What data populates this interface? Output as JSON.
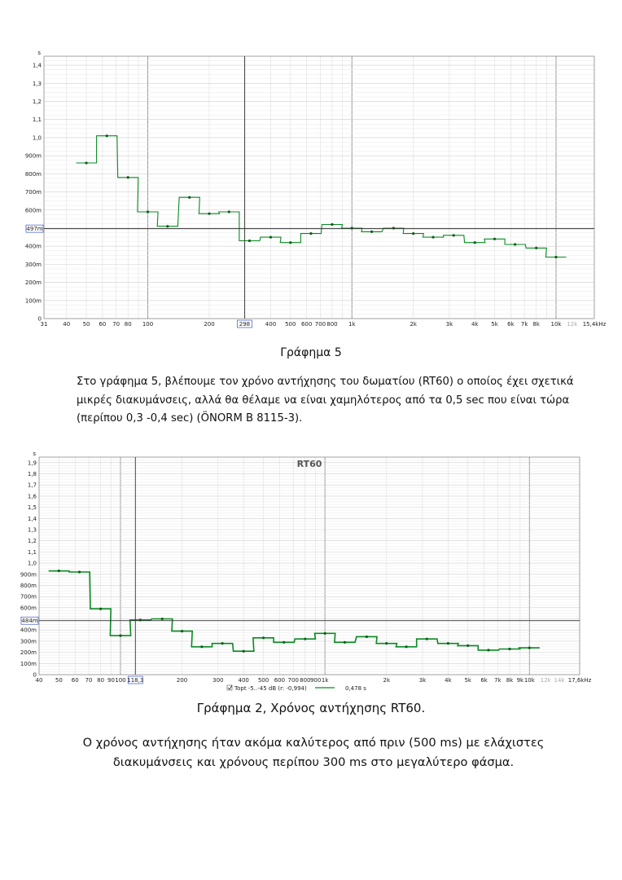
{
  "chart_data": [
    {
      "type": "line",
      "step": true,
      "title": "",
      "y_unit_label": "s",
      "ylim": [
        0,
        1.45
      ],
      "xlim": [
        31,
        15400
      ],
      "x_scale": "log",
      "grid": true,
      "y_ticks": [
        {
          "v": 0,
          "label": "0"
        },
        {
          "v": 0.1,
          "label": "100m"
        },
        {
          "v": 0.2,
          "label": "200m"
        },
        {
          "v": 0.3,
          "label": "300m"
        },
        {
          "v": 0.4,
          "label": "400m"
        },
        {
          "v": 0.5,
          "label": "500m"
        },
        {
          "v": 0.6,
          "label": "600m"
        },
        {
          "v": 0.7,
          "label": "700m"
        },
        {
          "v": 0.8,
          "label": "800m"
        },
        {
          "v": 0.9,
          "label": "900m"
        },
        {
          "v": 1.0,
          "label": "1,0"
        },
        {
          "v": 1.1,
          "label": "1,1"
        },
        {
          "v": 1.2,
          "label": "1,2"
        },
        {
          "v": 1.3,
          "label": "1,3"
        },
        {
          "v": 1.4,
          "label": "1,4"
        }
      ],
      "x_ticks": [
        {
          "v": 31,
          "label": "31"
        },
        {
          "v": 40,
          "label": "40"
        },
        {
          "v": 50,
          "label": "50"
        },
        {
          "v": 60,
          "label": "60"
        },
        {
          "v": 70,
          "label": "70"
        },
        {
          "v": 80,
          "label": "80"
        },
        {
          "v": 100,
          "label": "100"
        },
        {
          "v": 200,
          "label": "200"
        },
        {
          "v": 400,
          "label": "400"
        },
        {
          "v": 500,
          "label": "500"
        },
        {
          "v": 600,
          "label": "600"
        },
        {
          "v": 700,
          "label": "700"
        },
        {
          "v": 800,
          "label": "800"
        },
        {
          "v": 1000,
          "label": "1k"
        },
        {
          "v": 2000,
          "label": "2k"
        },
        {
          "v": 3000,
          "label": "3k"
        },
        {
          "v": 4000,
          "label": "4k"
        },
        {
          "v": 5000,
          "label": "5k"
        },
        {
          "v": 6000,
          "label": "6k"
        },
        {
          "v": 7000,
          "label": "7k"
        },
        {
          "v": 8000,
          "label": "8k"
        },
        {
          "v": 10000,
          "label": "10k"
        },
        {
          "v": 12000,
          "label": "12k",
          "faint": true
        },
        {
          "v": 15400,
          "label": "15,4kHz"
        }
      ],
      "cursor": {
        "x": 298,
        "y": 0.497,
        "x_label": "298",
        "y_label": "497m"
      },
      "series": [
        {
          "color": "#0a8a22",
          "x": [
            50,
            63,
            80,
            100,
            125,
            160,
            200,
            250,
            315,
            400,
            500,
            630,
            800,
            1000,
            1250,
            1600,
            2000,
            2500,
            3150,
            4000,
            5000,
            6300,
            8000,
            10000
          ],
          "y": [
            0.86,
            1.01,
            0.78,
            0.59,
            0.51,
            0.67,
            0.58,
            0.59,
            0.43,
            0.45,
            0.42,
            0.47,
            0.52,
            0.5,
            0.48,
            0.5,
            0.47,
            0.45,
            0.46,
            0.42,
            0.44,
            0.41,
            0.39,
            0.34
          ]
        }
      ]
    },
    {
      "type": "line",
      "step": true,
      "title": "RT60",
      "y_unit_label": "s",
      "ylim": [
        0,
        1.95
      ],
      "xlim": [
        40,
        17600
      ],
      "x_scale": "log",
      "grid": true,
      "y_ticks": [
        {
          "v": 0,
          "label": "0"
        },
        {
          "v": 0.1,
          "label": "100m"
        },
        {
          "v": 0.2,
          "label": "200m"
        },
        {
          "v": 0.3,
          "label": "300m"
        },
        {
          "v": 0.4,
          "label": "400m"
        },
        {
          "v": 0.5,
          "label": "500m"
        },
        {
          "v": 0.6,
          "label": "600m"
        },
        {
          "v": 0.7,
          "label": "700m"
        },
        {
          "v": 0.8,
          "label": "800m"
        },
        {
          "v": 0.9,
          "label": "900m"
        },
        {
          "v": 1.0,
          "label": "1,0"
        },
        {
          "v": 1.1,
          "label": "1,1"
        },
        {
          "v": 1.2,
          "label": "1,2"
        },
        {
          "v": 1.3,
          "label": "1,3"
        },
        {
          "v": 1.4,
          "label": "1,4"
        },
        {
          "v": 1.5,
          "label": "1,5"
        },
        {
          "v": 1.6,
          "label": "1,6"
        },
        {
          "v": 1.7,
          "label": "1,7"
        },
        {
          "v": 1.8,
          "label": "1,8"
        },
        {
          "v": 1.9,
          "label": "1,9"
        }
      ],
      "x_ticks": [
        {
          "v": 40,
          "label": "40"
        },
        {
          "v": 50,
          "label": "50"
        },
        {
          "v": 60,
          "label": "60"
        },
        {
          "v": 70,
          "label": "70"
        },
        {
          "v": 80,
          "label": "80"
        },
        {
          "v": 90,
          "label": "90"
        },
        {
          "v": 100,
          "label": "100"
        },
        {
          "v": 200,
          "label": "200"
        },
        {
          "v": 300,
          "label": "300"
        },
        {
          "v": 400,
          "label": "400"
        },
        {
          "v": 500,
          "label": "500"
        },
        {
          "v": 600,
          "label": "600"
        },
        {
          "v": 700,
          "label": "700"
        },
        {
          "v": 800,
          "label": "800"
        },
        {
          "v": 900,
          "label": "900"
        },
        {
          "v": 1000,
          "label": "1k"
        },
        {
          "v": 2000,
          "label": "2k"
        },
        {
          "v": 3000,
          "label": "3k"
        },
        {
          "v": 4000,
          "label": "4k"
        },
        {
          "v": 5000,
          "label": "5k"
        },
        {
          "v": 6000,
          "label": "6k"
        },
        {
          "v": 7000,
          "label": "7k"
        },
        {
          "v": 8000,
          "label": "8k"
        },
        {
          "v": 9000,
          "label": "9k"
        },
        {
          "v": 10000,
          "label": "10k"
        },
        {
          "v": 12000,
          "label": "12k",
          "faint": true
        },
        {
          "v": 14000,
          "label": "14k",
          "faint": true
        },
        {
          "v": 17600,
          "label": "17,6kHz"
        }
      ],
      "cursor": {
        "x": 118.3,
        "y": 0.484,
        "x_label": "118,3",
        "y_label": "484m"
      },
      "legend": {
        "series_label": "Topt -5..-45 dB (r: -0,994)",
        "value_label": "0,478 s"
      },
      "series": [
        {
          "color": "#0a8a22",
          "x": [
            50,
            63,
            80,
            100,
            125,
            160,
            200,
            250,
            315,
            400,
            500,
            630,
            800,
            1000,
            1250,
            1600,
            2000,
            2500,
            3150,
            4000,
            5000,
            6300,
            8000,
            10000
          ],
          "y": [
            0.93,
            0.92,
            0.59,
            0.35,
            0.49,
            0.5,
            0.39,
            0.25,
            0.28,
            0.21,
            0.33,
            0.29,
            0.32,
            0.37,
            0.29,
            0.34,
            0.28,
            0.25,
            0.32,
            0.28,
            0.26,
            0.22,
            0.23,
            0.24
          ]
        }
      ]
    }
  ],
  "captions": {
    "fig5": "Γράφημα 5",
    "fig2": "Γράφημα 2, Χρόνος αντήχησης RT60."
  },
  "paragraphs": {
    "p1": "Στο γράφημα 5, βλέπουμε τον χρόνο αντήχησης του δωματίου (RT60) ο οποίος έχει σχετικά μικρές διακυμάνσεις, αλλά θα θέλαμε να είναι χαμηλότερος από τα 0,5 sec που είναι τώρα (περίπου 0,3 -0,4 sec) (ÖNORM B 8115-3).",
    "p2": "Ο χρόνος αντήχησης ήταν ακόμα καλύτερος από πριν (500 ms) με ελάχιστες διακυμάνσεις και χρόνους περίπου 300 ms στο μεγαλύτερο φάσμα."
  }
}
